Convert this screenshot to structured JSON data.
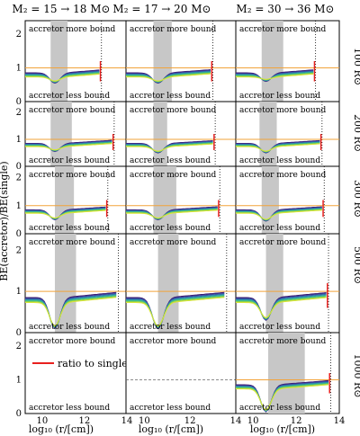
{
  "chart_data": {
    "type": "line",
    "ylabel": "BE(accretor)/BE(single)",
    "xlabel": "log₁₀ (r/[cm])",
    "xlim": [
      9.2,
      14.0
    ],
    "ylim": [
      0,
      2.4
    ],
    "xticks": [
      "10",
      "12",
      "14"
    ],
    "yticks": [
      "0",
      "1",
      "2"
    ],
    "column_titles": [
      "M₂ = 15 → 18 M⊙",
      "M₂ = 17 → 20 M⊙",
      "M₂ = 30 → 36 M⊙"
    ],
    "row_labels": [
      "100 R⊙",
      "200 R⊙",
      "300 R⊙",
      "500 R⊙",
      "1000 R⊙"
    ],
    "annotation_top": "accretor more bound",
    "annotation_bottom": "accretor less bound",
    "legend_entry": "ratio to single",
    "colors": {
      "reference_line": "#f2a33a",
      "legend_line": "#e8201e",
      "shaded_band": "#c7c7c7",
      "series_ramp": [
        "#3a1a6e",
        "#3c3f9c",
        "#2f6fb0",
        "#2f9fa4",
        "#3fbf87",
        "#88d04a",
        "#d8e437"
      ]
    },
    "panels": [
      {
        "row": 0,
        "col": 0,
        "band": [
          10.4,
          11.2
        ],
        "dotted_x": 12.8,
        "curves": [
          {
            "dip": 0.55,
            "spread": 0.06
          },
          {
            "dip": 0.5,
            "spread": 0.1
          },
          {
            "dip": 0.45,
            "spread": 0.14
          }
        ],
        "spike": true,
        "empty": false
      },
      {
        "row": 0,
        "col": 1,
        "band": [
          10.4,
          11.2
        ],
        "dotted_x": 13.0,
        "curves": [
          {
            "dip": 0.55
          },
          {
            "dip": 0.5
          },
          {
            "dip": 0.45
          }
        ],
        "spike": true,
        "empty": false
      },
      {
        "row": 0,
        "col": 2,
        "band": [
          10.4,
          11.4
        ],
        "dotted_x": 12.9,
        "curves": [
          {
            "dip": 0.6
          },
          {
            "dip": 0.55
          }
        ],
        "spike": true,
        "empty": false
      },
      {
        "row": 1,
        "col": 0,
        "band": [
          10.4,
          11.4
        ],
        "dotted_x": 13.4,
        "curves": [
          {
            "dip": 0.55
          },
          {
            "dip": 0.45
          }
        ],
        "spike": true,
        "empty": false
      },
      {
        "row": 1,
        "col": 1,
        "band": [
          10.4,
          11.0
        ],
        "dotted_x": 13.1,
        "curves": [
          {
            "dip": 0.5
          },
          {
            "dip": 0.4
          }
        ],
        "spike": true,
        "empty": false
      },
      {
        "row": 1,
        "col": 2,
        "band": [
          10.3,
          11.1
        ],
        "dotted_x": 13.2,
        "curves": [
          {
            "dip": 0.5
          }
        ],
        "spike": true,
        "empty": false
      },
      {
        "row": 2,
        "col": 0,
        "band": [
          10.6,
          11.5
        ],
        "dotted_x": 13.1,
        "curves": [
          {
            "dip": 0.5
          },
          {
            "dip": 0.3
          }
        ],
        "spike": true,
        "empty": false
      },
      {
        "row": 2,
        "col": 1,
        "band": [
          10.4,
          11.4
        ],
        "dotted_x": 13.3,
        "curves": [
          {
            "dip": 0.5
          },
          {
            "dip": 0.3
          }
        ],
        "spike": true,
        "empty": false
      },
      {
        "row": 2,
        "col": 2,
        "band": [
          10.4,
          11.2
        ],
        "dotted_x": 13.3,
        "curves": [
          {
            "dip": 0.45
          }
        ],
        "spike": true,
        "empty": false
      },
      {
        "row": 3,
        "col": 0,
        "band": [
          10.6,
          11.6
        ],
        "dotted_x": 13.6,
        "curves": [
          {
            "dip": 0.1
          }
        ],
        "spike": false,
        "empty": false
      },
      {
        "row": 3,
        "col": 1,
        "band": [
          10.6,
          11.5
        ],
        "dotted_x": 13.6,
        "curves": [
          {
            "dip": 0.1
          }
        ],
        "spike": false,
        "empty": false
      },
      {
        "row": 3,
        "col": 2,
        "band": [
          10.6,
          11.4
        ],
        "dotted_x": 13.5,
        "curves": [
          {
            "dip": 0.3
          }
        ],
        "spike": true,
        "empty": false
      },
      {
        "row": 4,
        "col": 0,
        "band": null,
        "dotted_x": null,
        "curves": [],
        "spike": false,
        "empty": true,
        "legend": true
      },
      {
        "row": 4,
        "col": 1,
        "band": null,
        "dotted_x": null,
        "curves": [],
        "spike": false,
        "empty": true,
        "dashed_ref": true
      },
      {
        "row": 4,
        "col": 2,
        "band": [
          10.7,
          12.4
        ],
        "dotted_x": 13.6,
        "curves": [
          {
            "dip": 0.05
          }
        ],
        "spike": true,
        "empty": false
      }
    ]
  }
}
